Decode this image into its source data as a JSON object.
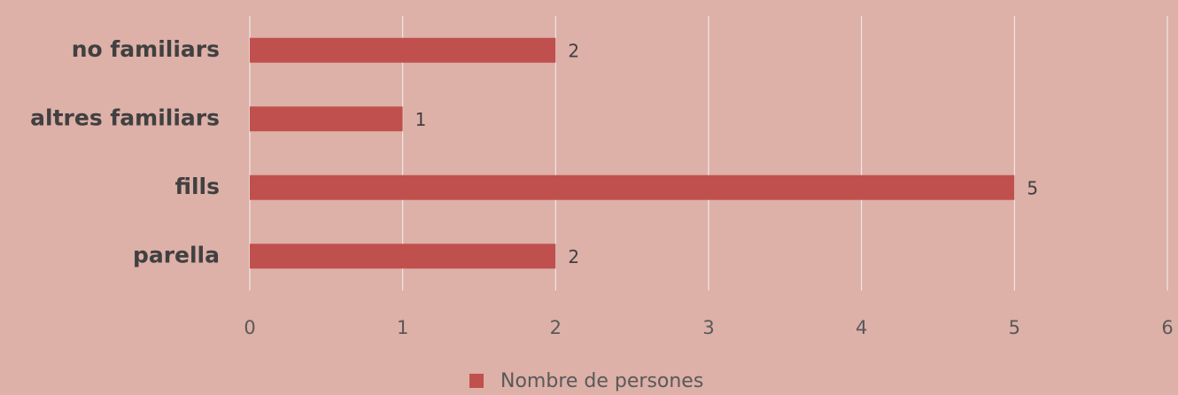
{
  "chart_data": {
    "type": "bar",
    "categories": [
      "no familiars",
      "altres familiars",
      "fills",
      "parella"
    ],
    "series": [
      {
        "name": "Nombre de persones",
        "color": "#c0504d",
        "values": [
          2,
          1,
          5,
          2
        ]
      }
    ],
    "xlim": [
      0,
      6
    ],
    "xticks": [
      0,
      1,
      2,
      3,
      4,
      5,
      6
    ],
    "grid": true,
    "legend": "bottom"
  }
}
